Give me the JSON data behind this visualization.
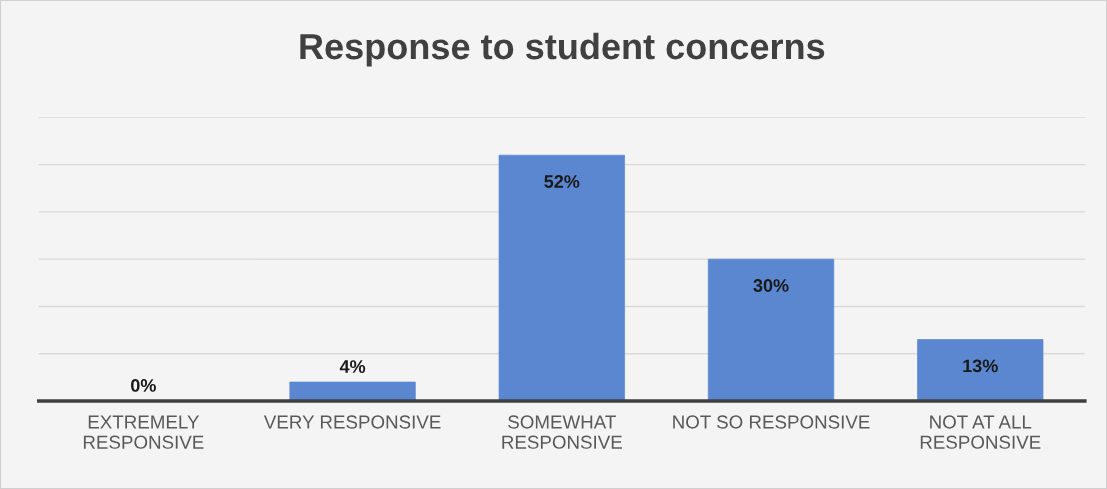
{
  "chart_data": {
    "type": "bar",
    "title": "Response to student concerns",
    "categories": [
      "EXTREMELY\nRESPONSIVE",
      "VERY RESPONSIVE",
      "SOMEWHAT\nRESPONSIVE",
      "NOT SO RESPONSIVE",
      "NOT AT ALL\nRESPONSIVE"
    ],
    "values": [
      0,
      4,
      52,
      30,
      13
    ],
    "value_labels": [
      "0%",
      "4%",
      "52%",
      "30%",
      "13%"
    ],
    "color": "#5b87d0",
    "ylim": [
      0,
      60
    ],
    "yticks": [
      {
        "value": 0,
        "label": null
      },
      {
        "value": 10,
        "label": null
      },
      {
        "value": 20,
        "label": null
      },
      {
        "value": 30,
        "label": null
      },
      {
        "value": 40,
        "label": null
      },
      {
        "value": 50,
        "label": null
      },
      {
        "value": 60,
        "label": null
      }
    ],
    "grid": "y",
    "tick_labels": "x",
    "legend": false
  }
}
